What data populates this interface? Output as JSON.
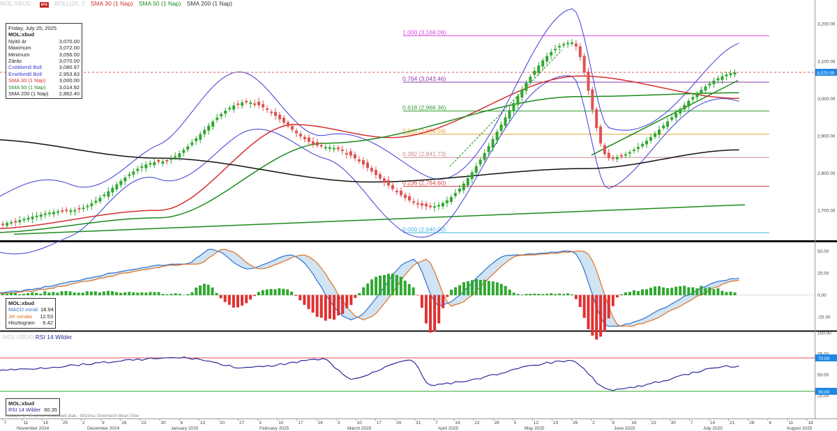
{
  "header": {
    "ticker_faint": "MOL:XBUD",
    "indicators": [
      {
        "label": "BOLL(20, 2",
        "color": "#cccccc"
      },
      {
        "label": "SMA 30 (1 Nap)",
        "color": "#d32f2f"
      },
      {
        "label": "SMA 50 (1 Nap)",
        "color": "#1b8a1b"
      },
      {
        "label": "SMA 200 (1 Nap)",
        "color": "#333333"
      }
    ],
    "logo_text": "ers"
  },
  "info_box": {
    "date": "Friday, July 25, 2025",
    "symbol": "MOL:xbud",
    "rows": [
      {
        "label": "Nyitó ár",
        "value": "3,070.00",
        "color": "#222222"
      },
      {
        "label": "Maximum",
        "value": "3,072.00",
        "color": "#222222"
      },
      {
        "label": "Minimum",
        "value": "3,056.00",
        "color": "#222222"
      },
      {
        "label": "Zárás",
        "value": "3,070.00",
        "color": "#222222"
      },
      {
        "label": "Csökkenő Boll",
        "value": "3,080.97",
        "color": "#3a3ad6"
      },
      {
        "label": "Emelkedő Boll",
        "value": "2,953.83",
        "color": "#3a3ad6"
      },
      {
        "label": "SMA 30 (1 Nap)",
        "value": "3,000.00",
        "color": "#d32f2f"
      },
      {
        "label": "SMA 50 (1 Nap)",
        "value": "3,014.92",
        "color": "#1b8a1b"
      },
      {
        "label": "SMA 200 (1 Nap)",
        "value": "2,862.40",
        "color": "#222222"
      }
    ]
  },
  "macd_box": {
    "symbol": "MOL:xbud",
    "rows": [
      {
        "label": "MACD vonal",
        "value": "18.94",
        "color": "#2e6fd0"
      },
      {
        "label": "Jel vonala",
        "value": "12.53",
        "color": "#e07020"
      },
      {
        "label": "Hisztogram",
        "value": "6.42",
        "color": "#222222"
      }
    ]
  },
  "rsi_box": {
    "symbol": "MOL:xbud",
    "label": "RSI 14 Wilder",
    "value": "60.35"
  },
  "rsi_legend": {
    "faint": "MOL:XBUD",
    "label": "RSI 14 Wilder"
  },
  "footnote": "Indikatív ár, 15 percet késleltetett árak · Időzóna: Greenwich Mean Time",
  "chart_data": [
    {
      "type": "candlestick",
      "panel": "price",
      "ylim": [
        2620,
        3260
      ],
      "y_ticks": [
        2700,
        2800,
        2900,
        3000,
        3100,
        3200
      ],
      "y_tick_labels": [
        "2,700.00",
        "2,800.00",
        "2,900.00",
        "3,000.00",
        "3,100.00",
        "3,200.00"
      ],
      "last_price_label": "3,070.00",
      "last_price": 3070,
      "fibonacci": [
        {
          "label": "1.000 (3,168.09)",
          "value": 3168.09,
          "color": "#e040e0"
        },
        {
          "label": "0.764 (3,043.46)",
          "value": 3043.46,
          "color": "#8a3aa8"
        },
        {
          "label": "0.618 (2,966.36)",
          "value": 2966.36,
          "color": "#2e9a2e"
        },
        {
          "label": "0.500 (2,904.04)",
          "value": 2904.04,
          "color": "#e8a030"
        },
        {
          "label": "0.382 (2,841.73)",
          "value": 2841.73,
          "color": "#c98a8a"
        },
        {
          "label": "0.236 (2,764.60)",
          "value": 2764.6,
          "color": "#d84040"
        },
        {
          "label": "0.000 (2,640.00)",
          "value": 2640,
          "color": "#40b8e0"
        }
      ],
      "series_points": [
        {
          "name": "Close",
          "x": [
            "2024-11",
            "2024-12",
            "2025-01",
            "2025-02",
            "2025-03",
            "2025-04-07",
            "2025-05-27",
            "2025-06-09",
            "2025-07-25"
          ],
          "y": [
            2660,
            2700,
            2830,
            2990,
            2870,
            2710,
            3150,
            2840,
            3070
          ]
        },
        {
          "name": "SMA 30 (1 Nap)",
          "x": [
            "2024-11",
            "2025-01",
            "2025-02-18",
            "2025-03-24",
            "2025-05-30",
            "2025-07-25"
          ],
          "y": [
            2650,
            2700,
            2930,
            2895,
            3060,
            3000
          ]
        },
        {
          "name": "SMA 50 (1 Nap)",
          "x": [
            "2024-11",
            "2025-01",
            "2025-03",
            "2025-05-30",
            "2025-07-25"
          ],
          "y": [
            2640,
            2680,
            2880,
            3005,
            3015
          ]
        },
        {
          "name": "SMA 200 (1 Nap)",
          "x": [
            "2024-11",
            "2025-01",
            "2025-03-17",
            "2025-06",
            "2025-07-25"
          ],
          "y": [
            2890,
            2840,
            2776,
            2812,
            2862
          ]
        }
      ]
    },
    {
      "type": "bar",
      "panel": "macd",
      "ylim": [
        -40,
        60
      ],
      "y_ticks": [
        -25,
        0,
        25,
        50
      ],
      "y_tick_labels": [
        "-25.00",
        "0.00",
        "25.00",
        "50.00"
      ],
      "macd_points": [
        {
          "x": "2024-11",
          "y": 2
        },
        {
          "x": "2025-01-10",
          "y": 35
        },
        {
          "x": "2025-01-20",
          "y": 52
        },
        {
          "x": "2025-02",
          "y": 30
        },
        {
          "x": "2025-02-17",
          "y": 45
        },
        {
          "x": "2025-03-10",
          "y": -28
        },
        {
          "x": "2025-04-01",
          "y": 40
        },
        {
          "x": "2025-04-10",
          "y": -12
        },
        {
          "x": "2025-05-05",
          "y": 45
        },
        {
          "x": "2025-05-27",
          "y": 50
        },
        {
          "x": "2025-06-09",
          "y": -36
        },
        {
          "x": "2025-07-25",
          "y": 18.94
        }
      ],
      "histogram_last": 6.42
    },
    {
      "type": "line",
      "panel": "rsi",
      "ylim": [
        0,
        100
      ],
      "y_ticks": [
        25,
        50,
        75,
        100
      ],
      "y_tick_labels": [
        "25.00",
        "50.00",
        "75.00",
        "100.00"
      ],
      "levels": [
        {
          "label": "70.00",
          "value": 70
        },
        {
          "label": "30.00",
          "value": 30
        }
      ],
      "last": 60.35,
      "points": [
        {
          "x": "2024-11",
          "y": 55
        },
        {
          "x": "2025-01-10",
          "y": 70
        },
        {
          "x": "2025-02",
          "y": 58
        },
        {
          "x": "2025-02-28",
          "y": 68
        },
        {
          "x": "2025-03-10",
          "y": 45
        },
        {
          "x": "2025-03-31",
          "y": 68
        },
        {
          "x": "2025-04-07",
          "y": 38
        },
        {
          "x": "2025-05-27",
          "y": 66
        },
        {
          "x": "2025-06-09",
          "y": 32
        },
        {
          "x": "2025-07-25",
          "y": 60.35
        }
      ]
    }
  ],
  "x_axis": {
    "day_ticks": [
      "7",
      "11",
      "18",
      "25",
      "2",
      "9",
      "16",
      "23",
      "30",
      "6",
      "13",
      "20",
      "27",
      "3",
      "10",
      "17",
      "24",
      "3",
      "10",
      "17",
      "24",
      "31",
      "7",
      "14",
      "22",
      "28",
      "5",
      "12",
      "19",
      "26",
      "2",
      "9",
      "16",
      "23",
      "30",
      "7",
      "14",
      "21",
      "28",
      "4",
      "11",
      "18"
    ],
    "month_labels": [
      {
        "label": "November 2024"
      },
      {
        "label": "December 2024"
      },
      {
        "label": "January 2025"
      },
      {
        "label": "February 2025"
      },
      {
        "label": "March 2025"
      },
      {
        "label": "April 2025"
      },
      {
        "label": "May 2025"
      },
      {
        "label": "June 2025"
      },
      {
        "label": "July 2025"
      },
      {
        "label": "August 2025"
      }
    ]
  }
}
